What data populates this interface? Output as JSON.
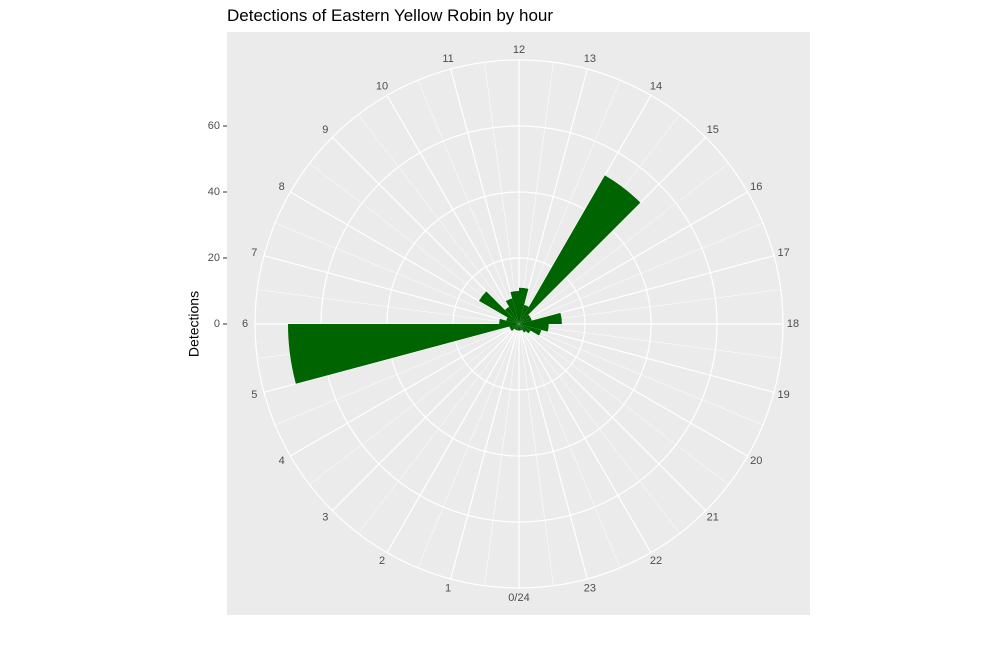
{
  "chart_data": {
    "type": "polar-bar",
    "title": "Detections of Eastern Yellow Robin by hour",
    "y_label": "Detections",
    "categories": [
      "0/24",
      "1",
      "2",
      "3",
      "4",
      "5",
      "6",
      "7",
      "8",
      "9",
      "10",
      "11",
      "12",
      "13",
      "14",
      "15",
      "16",
      "17",
      "18",
      "19",
      "20",
      "21",
      "22",
      "23"
    ],
    "values": [
      2,
      2,
      2,
      3,
      3,
      70,
      6,
      4,
      14,
      6,
      8,
      10,
      11,
      6,
      52,
      4,
      4,
      13,
      9,
      7,
      4,
      3,
      2,
      2
    ],
    "color": "#006400",
    "ylim": [
      0,
      80
    ],
    "yticks": [
      0,
      20,
      40,
      60
    ],
    "grid": true
  }
}
